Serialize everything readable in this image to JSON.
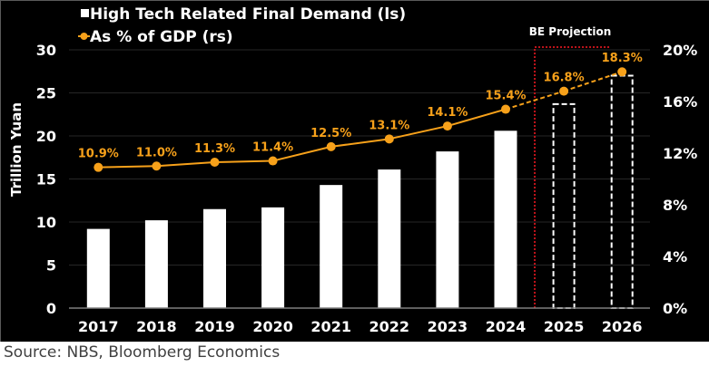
{
  "source": "Source: NBS, Bloomberg Economics",
  "colors": {
    "background": "#000000",
    "bar": "#ffffff",
    "line": "#F7A11A",
    "projection_box": "#C0141B",
    "grid": "#262626",
    "axis": "#7f7f7f"
  },
  "chart_data": {
    "type": "bar+line",
    "title": "",
    "xlabel": "",
    "ylabel": "Trillion Yuan",
    "y2label": "",
    "categories": [
      "2017",
      "2018",
      "2019",
      "2020",
      "2021",
      "2022",
      "2023",
      "2024",
      "2025",
      "2026"
    ],
    "ylim": [
      0,
      30
    ],
    "yticks": [
      "0",
      "5",
      "10",
      "15",
      "20",
      "25",
      "30"
    ],
    "y2lim": [
      0,
      20
    ],
    "y2ticks": [
      "0%",
      "4%",
      "8%",
      "12%",
      "16%",
      "20%"
    ],
    "grid": true,
    "legend_position": "top-left",
    "series": [
      {
        "name": "High Tech Related Final Demand (ls)",
        "type": "bar",
        "axis": "left",
        "values": [
          9.2,
          10.2,
          11.5,
          11.7,
          14.3,
          16.1,
          18.2,
          20.6,
          23.7,
          27.0
        ],
        "projected": [
          false,
          false,
          false,
          false,
          false,
          false,
          false,
          false,
          true,
          true
        ]
      },
      {
        "name": "As % of GDP (rs)",
        "type": "line",
        "axis": "right",
        "values": [
          10.9,
          11.0,
          11.3,
          11.4,
          12.5,
          13.1,
          14.1,
          15.4,
          16.8,
          18.3
        ],
        "labels": [
          "10.9%",
          "11.0%",
          "11.3%",
          "11.4%",
          "12.5%",
          "13.1%",
          "14.1%",
          "15.4%",
          "16.8%",
          "18.3%"
        ],
        "projected": [
          false,
          false,
          false,
          false,
          false,
          false,
          false,
          false,
          true,
          true
        ]
      }
    ],
    "annotations": [
      {
        "text": "BE Projection",
        "applies_to": [
          "2025",
          "2026"
        ]
      }
    ]
  }
}
